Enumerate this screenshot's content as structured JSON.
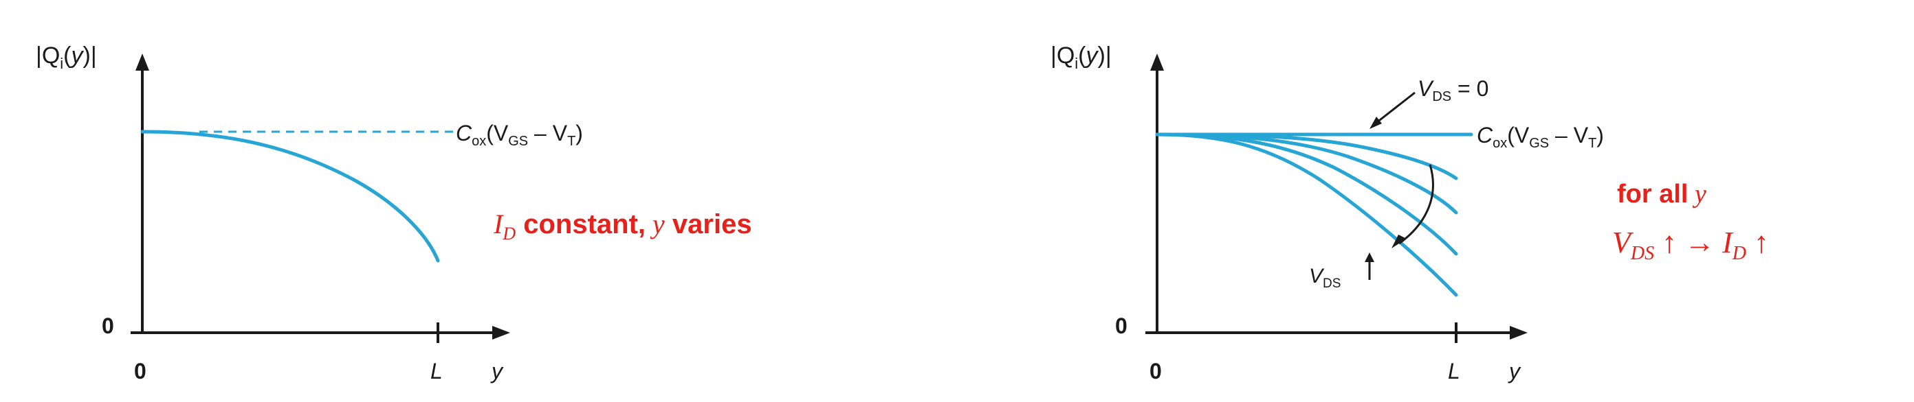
{
  "left_panel": {
    "y_axis_label": {
      "pre": "|Q",
      "sub": "i",
      "mid": "(",
      "var": "y",
      "post": ")|"
    },
    "origin_y_label": "0",
    "origin_x_label": "0",
    "x_end_label": "L",
    "x_axis_label": "y",
    "level_label": {
      "c": "C",
      "c_sub": "ox",
      "open": "(V",
      "gs_sub": "GS",
      "minus": " – V",
      "t_sub": "T",
      "close": ")"
    },
    "note": {
      "i": "I",
      "i_sub": "D",
      "text1": " constant,",
      "y": " y",
      "text2": " varies"
    }
  },
  "right_panel": {
    "y_axis_label": {
      "pre": "|Q",
      "sub": "i",
      "mid": "(",
      "var": "y",
      "post": ")|"
    },
    "origin_y_label": "0",
    "origin_x_label": "0",
    "x_end_label": "L",
    "x_axis_label": "y",
    "vds_zero_label": {
      "v": "V",
      "sub": "DS",
      "rest": " = 0"
    },
    "level_label": {
      "c": "C",
      "c_sub": "ox",
      "open": "(V",
      "gs_sub": "GS",
      "minus": " – V",
      "t_sub": "T",
      "close": ")"
    },
    "vds_up_label": {
      "v": "V",
      "sub": "DS"
    },
    "note_line1": {
      "text": "for all",
      "y": " y"
    },
    "note_line2": {
      "v": "V",
      "v_sub": "DS",
      "mid": " ↑ → ",
      "i": "I",
      "i_sub": "D",
      "end": " ↑"
    }
  },
  "colors": {
    "curve": "#27a6d6",
    "axis": "#1a1a1a",
    "annotation": "#e8201a"
  }
}
